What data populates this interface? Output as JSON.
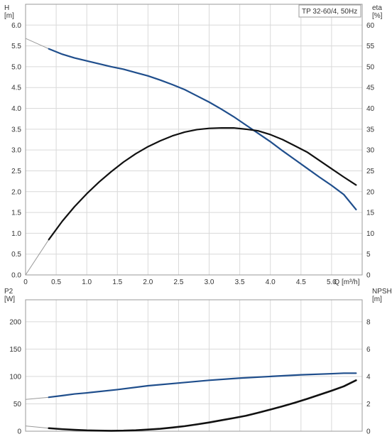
{
  "chart_data": [
    {
      "type": "line",
      "title": "TP 32-60/4, 50Hz",
      "xlabel": "Q [m³/h]",
      "ylabel_left": [
        "H",
        "[m]"
      ],
      "ylabel_right": [
        "eta",
        "[%]"
      ],
      "xlim": [
        0,
        5.5
      ],
      "ylim_left": [
        0,
        6.5
      ],
      "ylim_right": [
        0,
        65
      ],
      "xticks": [
        "0",
        "0.5",
        "1.0",
        "1.5",
        "2.0",
        "2.5",
        "3.0",
        "3.5",
        "4.0",
        "4.5",
        "5.0"
      ],
      "yticks_left": [
        "0.0",
        "0.5",
        "1.0",
        "1.5",
        "2.0",
        "2.5",
        "3.0",
        "3.5",
        "4.0",
        "4.5",
        "5.0",
        "5.5",
        "6.0"
      ],
      "yticks_right": [
        "0",
        "5",
        "10",
        "15",
        "20",
        "25",
        "30",
        "35",
        "40",
        "45",
        "50",
        "55",
        "60"
      ],
      "grid": true,
      "series": [
        {
          "name": "H",
          "axis": "left",
          "color": "#1f4e8c",
          "x": [
            0.0,
            0.38,
            0.6,
            0.8,
            1.0,
            1.2,
            1.4,
            1.6,
            1.8,
            2.0,
            2.2,
            2.4,
            2.6,
            2.8,
            3.0,
            3.2,
            3.4,
            3.6,
            3.8,
            4.0,
            4.2,
            4.4,
            4.6,
            4.8,
            5.0,
            5.2,
            5.4
          ],
          "y": [
            5.68,
            5.43,
            5.3,
            5.21,
            5.14,
            5.07,
            5.0,
            4.94,
            4.86,
            4.78,
            4.68,
            4.57,
            4.45,
            4.3,
            4.15,
            3.98,
            3.8,
            3.6,
            3.4,
            3.2,
            2.98,
            2.77,
            2.56,
            2.35,
            2.15,
            1.93,
            1.57
          ]
        },
        {
          "name": "eta",
          "axis": "right",
          "color": "#111111",
          "x": [
            0.0,
            0.38,
            0.6,
            0.8,
            1.0,
            1.2,
            1.4,
            1.6,
            1.8,
            2.0,
            2.2,
            2.4,
            2.6,
            2.8,
            3.0,
            3.2,
            3.4,
            3.6,
            3.8,
            4.0,
            4.2,
            4.4,
            4.6,
            4.8,
            5.0,
            5.2,
            5.4
          ],
          "y": [
            0.0,
            8.5,
            12.9,
            16.4,
            19.5,
            22.3,
            24.8,
            27.1,
            29.1,
            30.8,
            32.2,
            33.4,
            34.3,
            34.9,
            35.2,
            35.3,
            35.3,
            35.0,
            34.6,
            33.7,
            32.5,
            31.0,
            29.5,
            27.5,
            25.5,
            23.5,
            21.6
          ]
        }
      ]
    },
    {
      "type": "line",
      "title": "",
      "xlabel": "",
      "ylabel_left": [
        "P2",
        "[W]"
      ],
      "ylabel_right": [
        "NPSH",
        "[m]"
      ],
      "xlim": [
        0,
        5.5
      ],
      "ylim_left": [
        0,
        240
      ],
      "ylim_right": [
        0,
        9.6
      ],
      "yticks_left": [
        "0",
        "50",
        "100",
        "150",
        "200"
      ],
      "yticks_right": [
        "0",
        "2",
        "4",
        "6",
        "8"
      ],
      "grid": true,
      "series": [
        {
          "name": "P2",
          "axis": "left",
          "color": "#1f4e8c",
          "x": [
            0.0,
            0.38,
            0.6,
            0.8,
            1.0,
            1.5,
            2.0,
            2.5,
            3.0,
            3.5,
            4.0,
            4.5,
            5.0,
            5.2,
            5.4
          ],
          "y": [
            58,
            62,
            65,
            68,
            70,
            76,
            83,
            88,
            93,
            97,
            100,
            103,
            105,
            106,
            106
          ]
        },
        {
          "name": "NPSH",
          "axis": "right",
          "color": "#111111",
          "x": [
            0.0,
            0.38,
            0.6,
            0.8,
            1.0,
            1.2,
            1.4,
            1.6,
            1.8,
            2.0,
            2.2,
            2.4,
            2.6,
            2.8,
            3.0,
            3.2,
            3.4,
            3.6,
            3.8,
            4.0,
            4.2,
            4.4,
            4.6,
            4.8,
            5.0,
            5.2,
            5.4
          ],
          "y": [
            0.38,
            0.22,
            0.15,
            0.1,
            0.06,
            0.04,
            0.03,
            0.04,
            0.07,
            0.12,
            0.18,
            0.27,
            0.37,
            0.5,
            0.64,
            0.8,
            0.96,
            1.13,
            1.35,
            1.58,
            1.82,
            2.08,
            2.36,
            2.66,
            2.96,
            3.28,
            3.72
          ]
        }
      ]
    }
  ]
}
